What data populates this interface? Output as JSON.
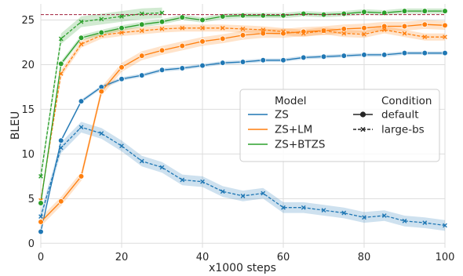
{
  "chart_data": {
    "type": "line",
    "xlabel": "x1000 steps",
    "ylabel": "BLEU",
    "xlim": [
      0,
      100
    ],
    "ylim": [
      -0.5,
      26.8
    ],
    "xticks": [
      0,
      20,
      40,
      60,
      80,
      100
    ],
    "yticks": [
      0,
      5,
      10,
      15,
      20,
      25
    ],
    "grid": true,
    "reference_line": {
      "y": 25.6,
      "color": "#a01f3a",
      "style": "dashed"
    },
    "legend": {
      "placement": "center-right",
      "hue_title": "Model",
      "style_title": "Condition",
      "models": [
        {
          "name": "ZS",
          "color": "#1f77b4"
        },
        {
          "name": "ZS+LM",
          "color": "#ff7f0e"
        },
        {
          "name": "ZS+BTZS",
          "color": "#2ca02c"
        }
      ],
      "conditions": [
        {
          "name": "default",
          "marker": "circle",
          "dash": "solid"
        },
        {
          "name": "large-bs",
          "marker": "x",
          "dash": "dashed"
        }
      ]
    },
    "series": [
      {
        "name": "ZS",
        "condition": "default",
        "color": "#1f77b4",
        "x": [
          0,
          5,
          10,
          15,
          20,
          25,
          30,
          35,
          40,
          45,
          50,
          55,
          60,
          65,
          70,
          75,
          80,
          85,
          90,
          95,
          100
        ],
        "y": [
          1.3,
          11.5,
          15.9,
          17.5,
          18.4,
          18.8,
          19.4,
          19.6,
          19.9,
          20.2,
          20.3,
          20.5,
          20.5,
          20.8,
          20.9,
          21.0,
          21.1,
          21.1,
          21.3,
          21.3,
          21.3
        ],
        "band": 0.2
      },
      {
        "name": "ZS",
        "condition": "large-bs",
        "color": "#1f77b4",
        "x": [
          0,
          5,
          10,
          15,
          20,
          25,
          30,
          35,
          40,
          45,
          50,
          55,
          60,
          65,
          70,
          75,
          80,
          85,
          90,
          95,
          100
        ],
        "y": [
          3.0,
          10.7,
          13.0,
          12.3,
          10.9,
          9.2,
          8.5,
          7.1,
          6.9,
          5.8,
          5.3,
          5.6,
          4.0,
          4.0,
          3.7,
          3.4,
          2.9,
          3.1,
          2.5,
          2.3,
          2.0
        ],
        "band": 0.6
      },
      {
        "name": "ZS+LM",
        "condition": "default",
        "color": "#ff7f0e",
        "x": [
          0,
          5,
          10,
          15,
          20,
          25,
          30,
          35,
          40,
          45,
          50,
          55,
          60,
          65,
          70,
          75,
          80,
          85,
          90,
          95,
          100
        ],
        "y": [
          2.4,
          4.7,
          7.5,
          17.0,
          19.7,
          21.0,
          21.6,
          22.1,
          22.6,
          22.9,
          23.3,
          23.5,
          23.5,
          23.7,
          23.8,
          24.0,
          24.1,
          24.3,
          24.3,
          24.5,
          24.4
        ],
        "band": 0.5
      },
      {
        "name": "ZS+LM",
        "condition": "large-bs",
        "color": "#ff7f0e",
        "x": [
          0,
          5,
          10,
          15,
          20,
          25,
          30,
          35,
          40,
          45,
          50,
          55,
          60,
          65,
          70,
          75,
          80,
          85,
          90,
          95,
          100
        ],
        "y": [
          4.8,
          19.0,
          22.3,
          23.3,
          23.6,
          23.8,
          24.0,
          24.1,
          24.1,
          24.1,
          24.0,
          23.9,
          23.7,
          23.5,
          23.8,
          23.5,
          23.4,
          23.9,
          23.5,
          23.1,
          23.1
        ],
        "band": 0.4
      },
      {
        "name": "ZS+BTZS",
        "condition": "default",
        "color": "#2ca02c",
        "x": [
          0,
          5,
          10,
          15,
          20,
          25,
          30,
          35,
          40,
          45,
          50,
          55,
          60,
          65,
          70,
          75,
          80,
          85,
          90,
          95,
          100
        ],
        "y": [
          4.5,
          20.1,
          23.0,
          23.6,
          24.1,
          24.5,
          24.8,
          25.3,
          25.0,
          25.4,
          25.5,
          25.5,
          25.5,
          25.7,
          25.6,
          25.7,
          25.9,
          25.8,
          26.0,
          26.0,
          26.0
        ],
        "band": 0.3
      },
      {
        "name": "ZS+BTZS",
        "condition": "large-bs",
        "color": "#2ca02c",
        "x": [
          0,
          5,
          10,
          15,
          20,
          25,
          30
        ],
        "y": [
          7.5,
          22.9,
          24.8,
          25.1,
          25.4,
          25.7,
          25.8
        ],
        "band": 0.6
      }
    ]
  }
}
